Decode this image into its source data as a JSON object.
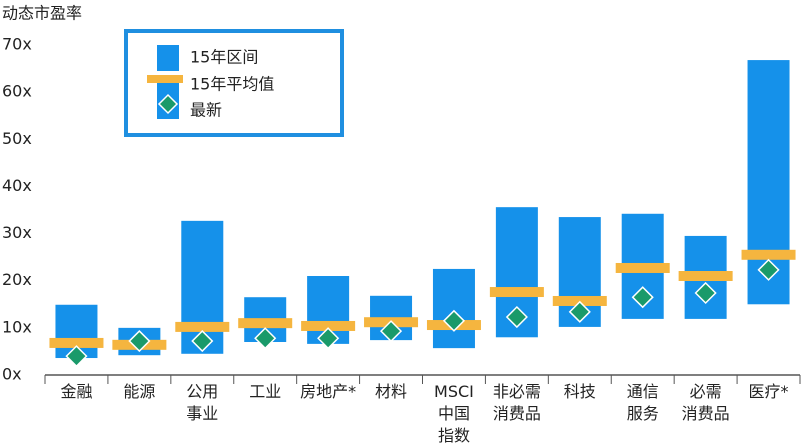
{
  "chart_data": {
    "type": "range_bar",
    "y_label": "动态市盈率",
    "categories": [
      [
        "金融"
      ],
      [
        "能源"
      ],
      [
        "公用",
        "事业"
      ],
      [
        "工业"
      ],
      [
        "房地产*"
      ],
      [
        "材料"
      ],
      [
        "MSCI",
        "中国",
        "指数"
      ],
      [
        "非必需",
        "消费品"
      ],
      [
        "科技"
      ],
      [
        "通信",
        "服务"
      ],
      [
        "必需",
        "消费品"
      ],
      [
        "医疗*"
      ]
    ],
    "series": [
      {
        "name": "15年区间",
        "color": "#1591ea",
        "low": [
          3.6,
          4.2,
          4.5,
          7,
          6.6,
          7.4,
          5.7,
          8,
          10.2,
          11.9,
          11.9,
          15
        ],
        "high": [
          14.9,
          10,
          32.7,
          16.5,
          21,
          16.8,
          22.5,
          35.6,
          33.5,
          34.2,
          29.5,
          66.8
        ]
      },
      {
        "name": "15年平均值",
        "color": "#f5b53f",
        "values": [
          6.8,
          6.4,
          10.2,
          11,
          10.4,
          11.2,
          10.6,
          17.6,
          15.7,
          22.7,
          21,
          25.5
        ]
      },
      {
        "name": "最新",
        "color": "#1a9a6a",
        "values": [
          4,
          7.2,
          7.2,
          7.8,
          7.8,
          9.3,
          11.5,
          12.3,
          13.4,
          16.5,
          17.4,
          22.3
        ]
      }
    ],
    "ylim": [
      0,
      70
    ],
    "yticks": [
      {
        "value": 0,
        "label": "0x"
      },
      {
        "value": 10,
        "label": "10x"
      },
      {
        "value": 20,
        "label": "20x"
      },
      {
        "value": 30,
        "label": "30x"
      },
      {
        "value": 40,
        "label": "40x"
      },
      {
        "value": 50,
        "label": "50x"
      },
      {
        "value": 60,
        "label": "60x"
      },
      {
        "value": 70,
        "label": "70x"
      }
    ],
    "grid": false
  }
}
